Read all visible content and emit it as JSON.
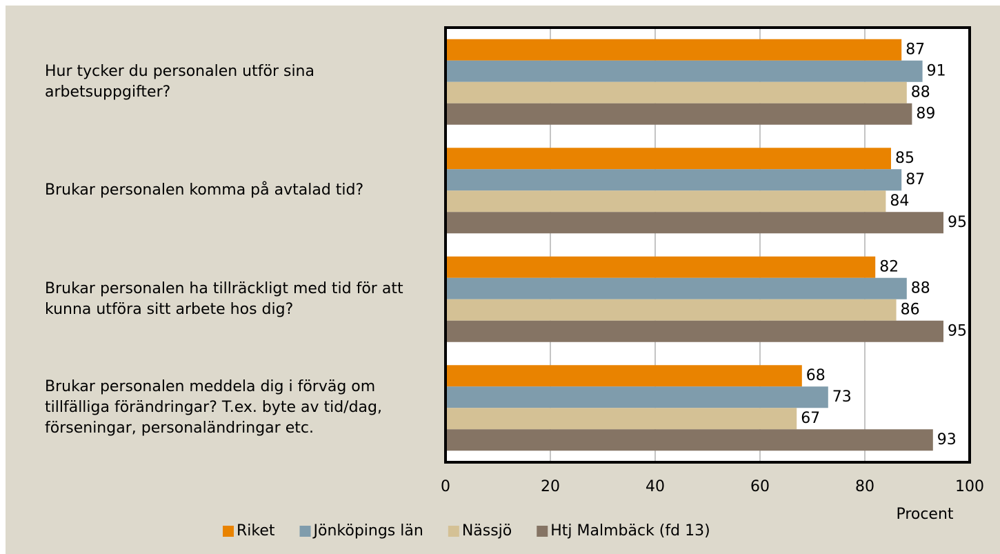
{
  "chart_data": {
    "type": "hbar",
    "categories": [
      "Hur tycker du personalen utför sina arbetsuppgifter?",
      "Brukar personalen komma på avtalad tid?",
      "Brukar personalen ha tillräckligt med tid för att kunna utföra sitt arbete hos dig?",
      "Brukar personalen meddela dig i förväg om tillfälliga förändringar? T.ex. byte av tid/dag, förseningar, personaländringar etc."
    ],
    "series": [
      {
        "name": "Riket",
        "color": "#e98300",
        "values": [
          87,
          85,
          82,
          68
        ]
      },
      {
        "name": "Jönköpings län",
        "color": "#7f9cac",
        "values": [
          91,
          87,
          88,
          73
        ]
      },
      {
        "name": "Nässjö",
        "color": "#d4c195",
        "values": [
          88,
          84,
          86,
          67
        ]
      },
      {
        "name": "Htj Malmbäck (fd 13)",
        "color": "#857464",
        "values": [
          89,
          95,
          95,
          93
        ]
      }
    ],
    "xlabel": "Procent",
    "xlim": [
      0,
      100
    ],
    "xticks": [
      0,
      20,
      40,
      60,
      80,
      100
    ],
    "grid": true,
    "legend": "bottom"
  }
}
